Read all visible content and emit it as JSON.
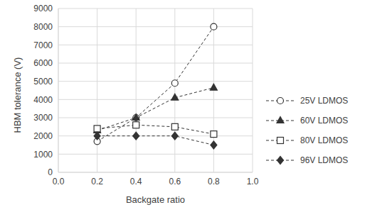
{
  "chart_data": {
    "type": "line",
    "x_label": "Backgate ratio",
    "y_label": "HBM tolerance (V)",
    "x": [
      0.2,
      0.4,
      0.6,
      0.8
    ],
    "xlim": [
      0,
      1
    ],
    "xticks": [
      {
        "value": 0,
        "label": "0.0"
      },
      {
        "value": 0.2,
        "label": "0.2"
      },
      {
        "value": 0.4,
        "label": "0.4"
      },
      {
        "value": 0.6,
        "label": "0.6"
      },
      {
        "value": 0.8,
        "label": "0.8"
      },
      {
        "value": 1,
        "label": "1.0"
      }
    ],
    "ylim": [
      0,
      9000
    ],
    "yticks": [
      0,
      1000,
      2000,
      3000,
      4000,
      5000,
      6000,
      7000,
      8000,
      9000
    ],
    "grid": true,
    "legend": "right",
    "series": [
      {
        "name": "25V LDMOS",
        "color": "#333333",
        "marker": "circle_open",
        "line_style": "dashed",
        "values": [
          1700,
          3000,
          4900,
          8000
        ]
      },
      {
        "name": "60V LDMOS",
        "color": "#333333",
        "marker": "triangle",
        "line_style": "dashed",
        "values": [
          2300,
          3000,
          4100,
          4650
        ]
      },
      {
        "name": "80V LDMOS",
        "color": "#333333",
        "marker": "square_open",
        "line_style": "dashed",
        "values": [
          2400,
          2600,
          2500,
          2100
        ]
      },
      {
        "name": "96V LDMOS",
        "color": "#333333",
        "marker": "diamond",
        "line_style": "dashed",
        "values": [
          2000,
          2000,
          2000,
          1500
        ]
      }
    ]
  }
}
